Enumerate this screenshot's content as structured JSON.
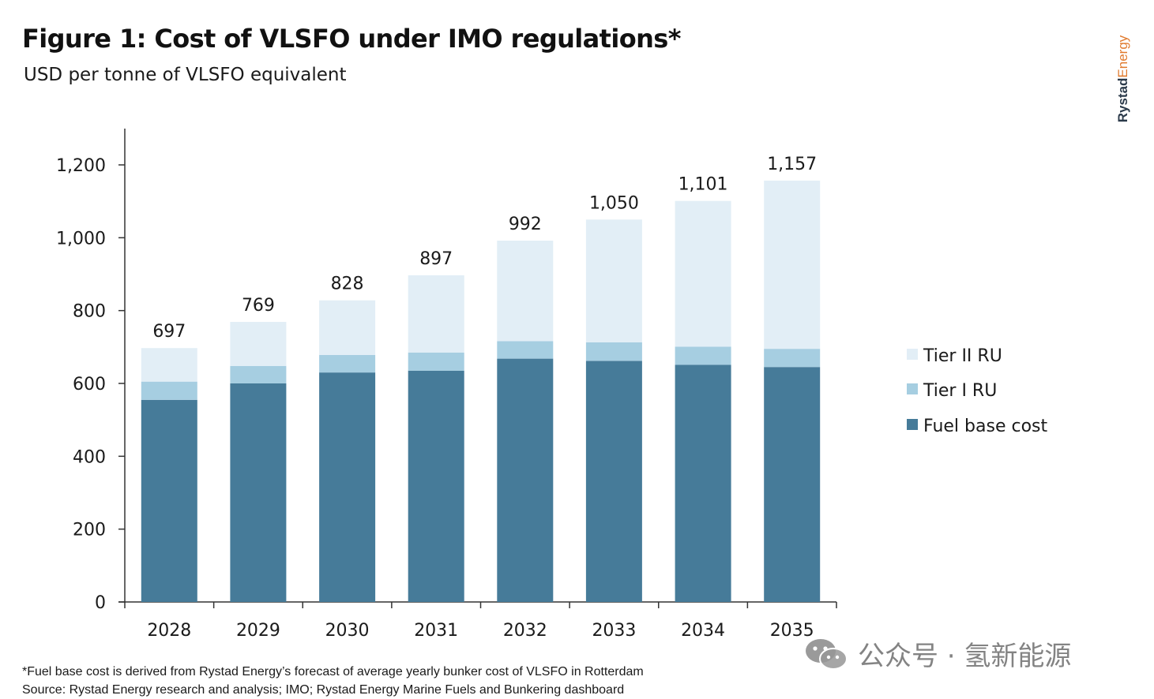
{
  "header": {
    "title": "Figure 1: Cost of VLSFO under IMO regulations*",
    "subtitle": "USD per tonne of VLSFO equivalent"
  },
  "brand": {
    "part1": "Rystad",
    "part2": "Energy"
  },
  "colors": {
    "fuel_base": "#467b99",
    "tier1": "#a6cee1",
    "tier2": "#e2eef6",
    "axis": "#333333"
  },
  "chart_data": {
    "type": "bar",
    "stacked": true,
    "categories": [
      "2028",
      "2029",
      "2030",
      "2031",
      "2032",
      "2033",
      "2034",
      "2035"
    ],
    "series": [
      {
        "name": "Fuel base cost",
        "values": [
          555,
          600,
          630,
          635,
          668,
          662,
          651,
          645
        ]
      },
      {
        "name": "Tier I RU",
        "values": [
          50,
          48,
          48,
          50,
          48,
          51,
          50,
          50
        ]
      },
      {
        "name": "Tier II RU",
        "values": [
          92,
          121,
          150,
          212,
          276,
          337,
          400,
          462
        ]
      }
    ],
    "totals": [
      697,
      769,
      828,
      897,
      992,
      1050,
      1101,
      1157
    ],
    "total_labels": [
      "697",
      "769",
      "828",
      "897",
      "992",
      "1,050",
      "1,101",
      "1,157"
    ],
    "y_ticks": [
      0,
      200,
      400,
      600,
      800,
      1000,
      1200
    ],
    "y_tick_labels": [
      "0",
      "200",
      "400",
      "600",
      "800",
      "1,000",
      "1,200"
    ],
    "ylim": [
      0,
      1300
    ],
    "xlabel": "",
    "ylabel": "",
    "legend_position": "right",
    "legend_order": [
      "Tier II RU",
      "Tier I RU",
      "Fuel base cost"
    ]
  },
  "footer": {
    "note": "*Fuel base cost is derived from Rystad Energy’s forecast of average yearly bunker cost of VLSFO in Rotterdam",
    "source": "Source: Rystad Energy research and analysis; IMO; Rystad Energy Marine Fuels and Bunkering dashboard"
  },
  "watermark": {
    "text": "公众号 · 氢新能源",
    "icon": "wechat-icon"
  }
}
